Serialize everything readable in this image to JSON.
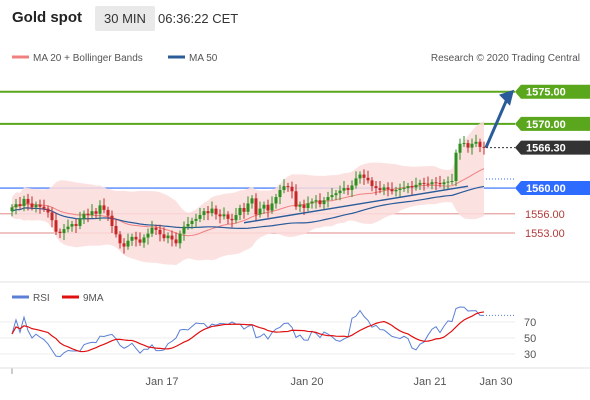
{
  "header": {
    "symbol": "Gold spot",
    "timeframe": "30 MIN",
    "time": "06:36:22 CET"
  },
  "legend": {
    "ma20_label": "MA 20 + Bollinger Bands",
    "ma50_label": "MA 50",
    "source": "Research © 2020 Trading Central"
  },
  "colors": {
    "up": "#2d8f1e",
    "down": "#c62828",
    "green_level": "#5aa61c",
    "blue_level": "#2e6bff",
    "red_level": "#e8a0a0",
    "current": "#333333",
    "ma50": "#2a5c9a",
    "ma20": "#f08080",
    "bb_fill": "#fbdcdc",
    "arrow": "#2a5c9a"
  },
  "chart_data": [
    {
      "type": "candlestick",
      "ylim": [
        1546,
        1579
      ],
      "x_tick_labels": [
        "Jan 17",
        "Jan 20",
        "Jan 21",
        "Jan 30"
      ],
      "levels": [
        {
          "value": 1575.0,
          "label": "1575.00",
          "kind": "resistance"
        },
        {
          "value": 1570.0,
          "label": "1570.00",
          "kind": "resistance"
        },
        {
          "value": 1566.3,
          "label": "1566.30",
          "kind": "current"
        },
        {
          "value": 1560.0,
          "label": "1560.00",
          "kind": "pivot"
        },
        {
          "value": 1556.0,
          "label": "1556.00",
          "kind": "support"
        },
        {
          "value": 1553.0,
          "label": "1553.00",
          "kind": "support"
        }
      ],
      "close_approx": [
        1557.0,
        1557.5,
        1557.2,
        1558.3,
        1557.6,
        1557.0,
        1557.4,
        1557.1,
        1556.8,
        1556.2,
        1555.0,
        1553.2,
        1553.0,
        1553.6,
        1554.0,
        1554.4,
        1554.1,
        1555.2,
        1556.0,
        1555.8,
        1556.4,
        1556.0,
        1557.3,
        1556.6,
        1555.7,
        1554.1,
        1552.8,
        1551.4,
        1550.9,
        1551.8,
        1552.4,
        1552.0,
        1551.5,
        1552.3,
        1552.9,
        1553.8,
        1553.5,
        1552.8,
        1552.2,
        1552.6,
        1552.0,
        1551.4,
        1552.9,
        1554.0,
        1554.4,
        1554.9,
        1555.2,
        1555.8,
        1556.4,
        1556.1,
        1556.8,
        1555.9,
        1555.6,
        1555.9,
        1555.2,
        1555.0,
        1555.8,
        1556.9,
        1556.3,
        1557.6,
        1558.4,
        1555.9,
        1556.8,
        1557.4,
        1556.5,
        1557.6,
        1558.6,
        1559.7,
        1560.3,
        1560.2,
        1559.5,
        1557.1,
        1557.4,
        1556.9,
        1557.6,
        1557.9,
        1558.1,
        1557.5,
        1558.1,
        1558.6,
        1558.9,
        1559.2,
        1559.6,
        1560.0,
        1559.7,
        1560.4,
        1561.5,
        1562.1,
        1561.6,
        1561.2,
        1560.3,
        1560.0,
        1559.7,
        1560.1,
        1559.8,
        1559.5,
        1559.7,
        1559.9,
        1560.0,
        1560.3,
        1560.1,
        1560.5,
        1560.8,
        1560.7,
        1560.6,
        1560.9,
        1560.8,
        1560.6,
        1560.9,
        1561.0,
        1561.1,
        1565.5,
        1566.9,
        1567.0,
        1566.3,
        1566.9,
        1567.2,
        1566.4,
        1566.3
      ],
      "forecast_arrow": {
        "from": 1566.3,
        "to": 1575.0
      }
    },
    {
      "type": "line",
      "title": "RSI",
      "ylim": [
        20,
        85
      ],
      "y_ticks": [
        30,
        50,
        70
      ],
      "series": [
        {
          "name": "RSI"
        },
        {
          "name": "9MA"
        }
      ]
    }
  ]
}
